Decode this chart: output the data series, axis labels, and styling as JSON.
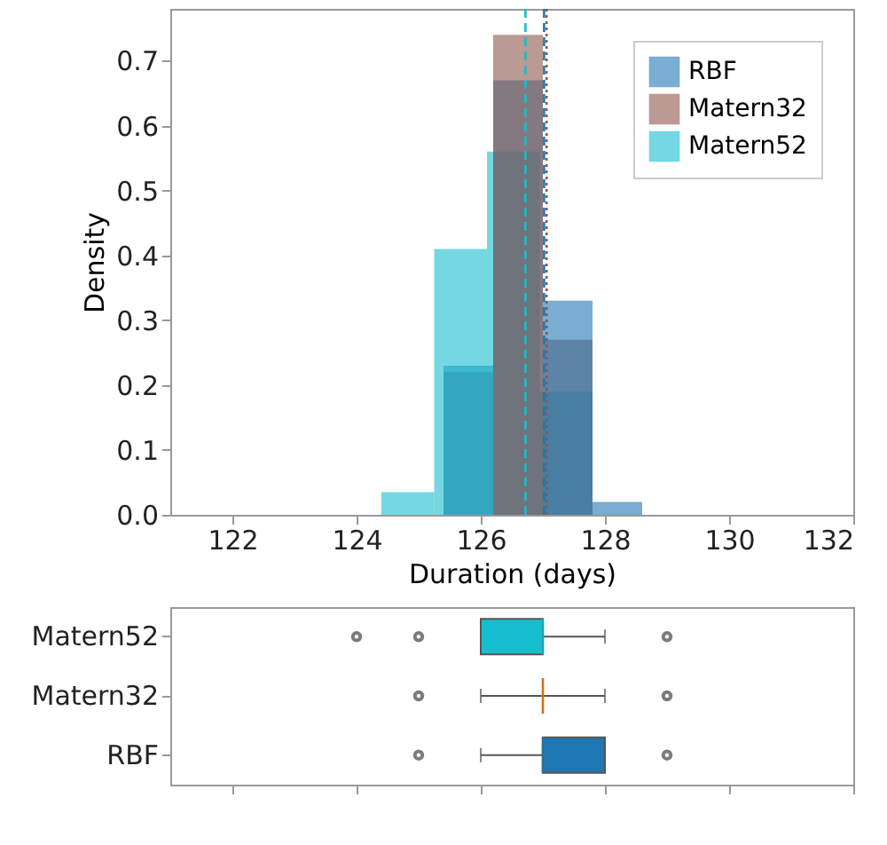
{
  "chart_data": [
    {
      "type": "histogram",
      "xlabel": "Duration (days)",
      "ylabel": "Density",
      "xlim": [
        121,
        132
      ],
      "xticks": [
        122,
        124,
        126,
        128,
        130,
        132
      ],
      "ylim": [
        0,
        0.78
      ],
      "yticks": [
        {
          "value": 0,
          "label": "0.0"
        },
        0.1,
        0.2,
        0.3,
        0.4,
        0.5,
        0.6,
        0.7
      ],
      "legend": "top right",
      "grid": false,
      "bins": [
        125.4,
        126.2,
        127.0,
        127.8,
        128.6
      ],
      "series": [
        {
          "name": "RBF",
          "color": "#1f77b4",
          "values": [
            0.23,
            0.67,
            0.33,
            0.02
          ]
        },
        {
          "name": "Matern32",
          "color": "#8c564b",
          "values": [
            0.22,
            0.74,
            0.27,
            null
          ]
        },
        {
          "name": "Matern52",
          "color": "#17becf",
          "bins": [
            124.4,
            125.25,
            126.1,
            126.95,
            127.8
          ],
          "values": [
            0.035,
            0.41,
            0.56,
            0.19
          ]
        }
      ],
      "ref_lines": [
        {
          "axis": "x",
          "value": 126.72,
          "color": "#17becf",
          "line_style": "dashed"
        },
        {
          "axis": "x",
          "value": 127.02,
          "color": "#1f77b4",
          "line_style": "dashed"
        },
        {
          "axis": "x",
          "value": 127.06,
          "color": "#8c564b",
          "line_style": "dotted"
        }
      ]
    },
    {
      "type": "box",
      "orientation": "horizontal",
      "categories": [
        "Matern52",
        "Matern32",
        "RBF"
      ],
      "xlim": [
        121,
        132
      ],
      "xticks": [
        122,
        124,
        126,
        128,
        130,
        132
      ],
      "tick_labels": "y",
      "colors": [
        "#17becf",
        "#ff7f0e",
        "#1f77b4"
      ],
      "boxes": [
        {
          "low": 126,
          "q1": 126,
          "median": 127,
          "q3": 127,
          "high": 128,
          "outliers": [
            124,
            125,
            129
          ]
        },
        {
          "low": 126,
          "q1": 127,
          "median": 127,
          "q3": 127,
          "high": 128,
          "outliers": [
            125,
            129
          ]
        },
        {
          "low": 126,
          "q1": 127,
          "median": 127,
          "q3": 128,
          "high": 128,
          "outliers": [
            125,
            129
          ]
        }
      ]
    }
  ]
}
